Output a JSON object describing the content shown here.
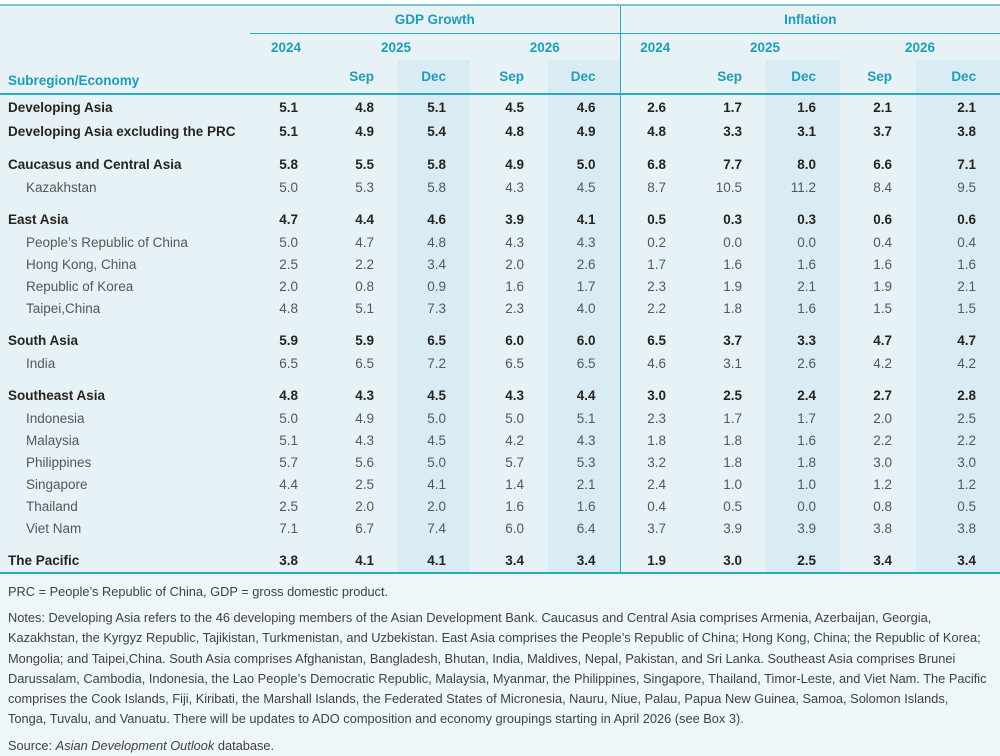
{
  "chart_data": {
    "type": "table",
    "column_groups": [
      "GDP Growth",
      "Inflation"
    ],
    "years": [
      "2024",
      "2025",
      "2026"
    ],
    "forecast_columns": [
      "Sep",
      "Dec"
    ],
    "row_header": "Subregion/Economy",
    "columns": [
      "GDP 2024",
      "GDP 2025 Sep",
      "GDP 2025 Dec",
      "GDP 2026 Sep",
      "GDP 2026 Dec",
      "Inflation 2024",
      "Inflation 2025 Sep",
      "Inflation 2025 Dec",
      "Inflation 2026 Sep",
      "Inflation 2026 Dec"
    ],
    "rows": [
      {
        "name": "Developing Asia",
        "bold": true,
        "indent": false,
        "gap_before": false,
        "gdp": [
          "5.1",
          "4.8",
          "5.1",
          "4.5",
          "4.6"
        ],
        "inflation": [
          "2.6",
          "1.7",
          "1.6",
          "2.1",
          "2.1"
        ]
      },
      {
        "name": "Developing Asia excluding the PRC",
        "bold": true,
        "indent": false,
        "gap_before": false,
        "gdp": [
          "5.1",
          "4.9",
          "5.4",
          "4.8",
          "4.9"
        ],
        "inflation": [
          "4.8",
          "3.3",
          "3.1",
          "3.7",
          "3.8"
        ]
      },
      {
        "name": "Caucasus and Central Asia",
        "bold": true,
        "indent": false,
        "gap_before": true,
        "gdp": [
          "5.8",
          "5.5",
          "5.8",
          "4.9",
          "5.0"
        ],
        "inflation": [
          "6.8",
          "7.7",
          "8.0",
          "6.6",
          "7.1"
        ]
      },
      {
        "name": "Kazakhstan",
        "bold": false,
        "indent": true,
        "gap_before": false,
        "gdp": [
          "5.0",
          "5.3",
          "5.8",
          "4.3",
          "4.5"
        ],
        "inflation": [
          "8.7",
          "10.5",
          "11.2",
          "8.4",
          "9.5"
        ]
      },
      {
        "name": "East Asia",
        "bold": true,
        "indent": false,
        "gap_before": true,
        "gdp": [
          "4.7",
          "4.4",
          "4.6",
          "3.9",
          "4.1"
        ],
        "inflation": [
          "0.5",
          "0.3",
          "0.3",
          "0.6",
          "0.6"
        ]
      },
      {
        "name": "People’s Republic of China",
        "bold": false,
        "indent": true,
        "gap_before": false,
        "gdp": [
          "5.0",
          "4.7",
          "4.8",
          "4.3",
          "4.3"
        ],
        "inflation": [
          "0.2",
          "0.0",
          "0.0",
          "0.4",
          "0.4"
        ]
      },
      {
        "name": "Hong Kong, China",
        "bold": false,
        "indent": true,
        "gap_before": false,
        "gdp": [
          "2.5",
          "2.2",
          "3.4",
          "2.0",
          "2.6"
        ],
        "inflation": [
          "1.7",
          "1.6",
          "1.6",
          "1.6",
          "1.6"
        ]
      },
      {
        "name": "Republic of Korea",
        "bold": false,
        "indent": true,
        "gap_before": false,
        "gdp": [
          "2.0",
          "0.8",
          "0.9",
          "1.6",
          "1.7"
        ],
        "inflation": [
          "2.3",
          "1.9",
          "2.1",
          "1.9",
          "2.1"
        ]
      },
      {
        "name": "Taipei,China",
        "bold": false,
        "indent": true,
        "gap_before": false,
        "gdp": [
          "4.8",
          "5.1",
          "7.3",
          "2.3",
          "4.0"
        ],
        "inflation": [
          "2.2",
          "1.8",
          "1.6",
          "1.5",
          "1.5"
        ]
      },
      {
        "name": "South Asia",
        "bold": true,
        "indent": false,
        "gap_before": true,
        "gdp": [
          "5.9",
          "5.9",
          "6.5",
          "6.0",
          "6.0"
        ],
        "inflation": [
          "6.5",
          "3.7",
          "3.3",
          "4.7",
          "4.7"
        ]
      },
      {
        "name": "India",
        "bold": false,
        "indent": true,
        "gap_before": false,
        "gdp": [
          "6.5",
          "6.5",
          "7.2",
          "6.5",
          "6.5"
        ],
        "inflation": [
          "4.6",
          "3.1",
          "2.6",
          "4.2",
          "4.2"
        ]
      },
      {
        "name": "Southeast Asia",
        "bold": true,
        "indent": false,
        "gap_before": true,
        "gdp": [
          "4.8",
          "4.3",
          "4.5",
          "4.3",
          "4.4"
        ],
        "inflation": [
          "3.0",
          "2.5",
          "2.4",
          "2.7",
          "2.8"
        ]
      },
      {
        "name": "Indonesia",
        "bold": false,
        "indent": true,
        "gap_before": false,
        "gdp": [
          "5.0",
          "4.9",
          "5.0",
          "5.0",
          "5.1"
        ],
        "inflation": [
          "2.3",
          "1.7",
          "1.7",
          "2.0",
          "2.5"
        ]
      },
      {
        "name": "Malaysia",
        "bold": false,
        "indent": true,
        "gap_before": false,
        "gdp": [
          "5.1",
          "4.3",
          "4.5",
          "4.2",
          "4.3"
        ],
        "inflation": [
          "1.8",
          "1.8",
          "1.6",
          "2.2",
          "2.2"
        ]
      },
      {
        "name": "Philippines",
        "bold": false,
        "indent": true,
        "gap_before": false,
        "gdp": [
          "5.7",
          "5.6",
          "5.0",
          "5.7",
          "5.3"
        ],
        "inflation": [
          "3.2",
          "1.8",
          "1.8",
          "3.0",
          "3.0"
        ]
      },
      {
        "name": "Singapore",
        "bold": false,
        "indent": true,
        "gap_before": false,
        "gdp": [
          "4.4",
          "2.5",
          "4.1",
          "1.4",
          "2.1"
        ],
        "inflation": [
          "2.4",
          "1.0",
          "1.0",
          "1.2",
          "1.2"
        ]
      },
      {
        "name": "Thailand",
        "bold": false,
        "indent": true,
        "gap_before": false,
        "gdp": [
          "2.5",
          "2.0",
          "2.0",
          "1.6",
          "1.6"
        ],
        "inflation": [
          "0.4",
          "0.5",
          "0.0",
          "0.8",
          "0.5"
        ]
      },
      {
        "name": "Viet Nam",
        "bold": false,
        "indent": true,
        "gap_before": false,
        "gdp": [
          "7.1",
          "6.7",
          "7.4",
          "6.0",
          "6.4"
        ],
        "inflation": [
          "3.7",
          "3.9",
          "3.9",
          "3.8",
          "3.8"
        ]
      },
      {
        "name": "The Pacific",
        "bold": true,
        "indent": false,
        "gap_before": true,
        "gdp": [
          "3.8",
          "4.1",
          "4.1",
          "3.4",
          "3.4"
        ],
        "inflation": [
          "1.9",
          "3.0",
          "2.5",
          "3.4",
          "3.4"
        ]
      }
    ]
  },
  "footnotes": {
    "abbrev": "PRC = People’s Republic of China, GDP = gross domestic product.",
    "notes": "Notes: Developing Asia refers to the 46 developing members of the Asian Development Bank. Caucasus and Central Asia comprises Armenia, Azerbaijan, Georgia, Kazakhstan, the Kyrgyz Republic, Tajikistan, Turkmenistan, and Uzbekistan. East Asia comprises the People’s Republic of China; Hong Kong, China; the Republic of Korea; Mongolia; and Taipei,China. South Asia comprises Afghanistan, Bangladesh, Bhutan, India, Maldives, Nepal, Pakistan, and Sri Lanka. Southeast Asia comprises Brunei Darussalam, Cambodia, Indonesia, the Lao People’s Democratic Republic, Malaysia, Myanmar, the Philippines, Singapore, Thailand, Timor-Leste, and Viet Nam. The Pacific comprises the Cook Islands, Fiji, Kiribati, the Marshall Islands, the Federated States of Micronesia, Nauru, Niue, Palau, Papua New Guinea, Samoa, Solomon Islands, Tonga, Tuvalu, and Vanuatu. There will be updates to ADO composition and economy groupings starting in April 2026 (see Box 3).",
    "source_prefix": "Source: ",
    "source_italic": "Asian Development Outlook",
    "source_suffix": " database."
  },
  "colors": {
    "accent_teal": "#1e9db6",
    "rule_teal": "#2aa9c1",
    "panel_blue": "#e6f2f6",
    "dec_band_blue": "#d9ecf3",
    "bold_text": "#262420",
    "regular_text": "#55565a"
  }
}
